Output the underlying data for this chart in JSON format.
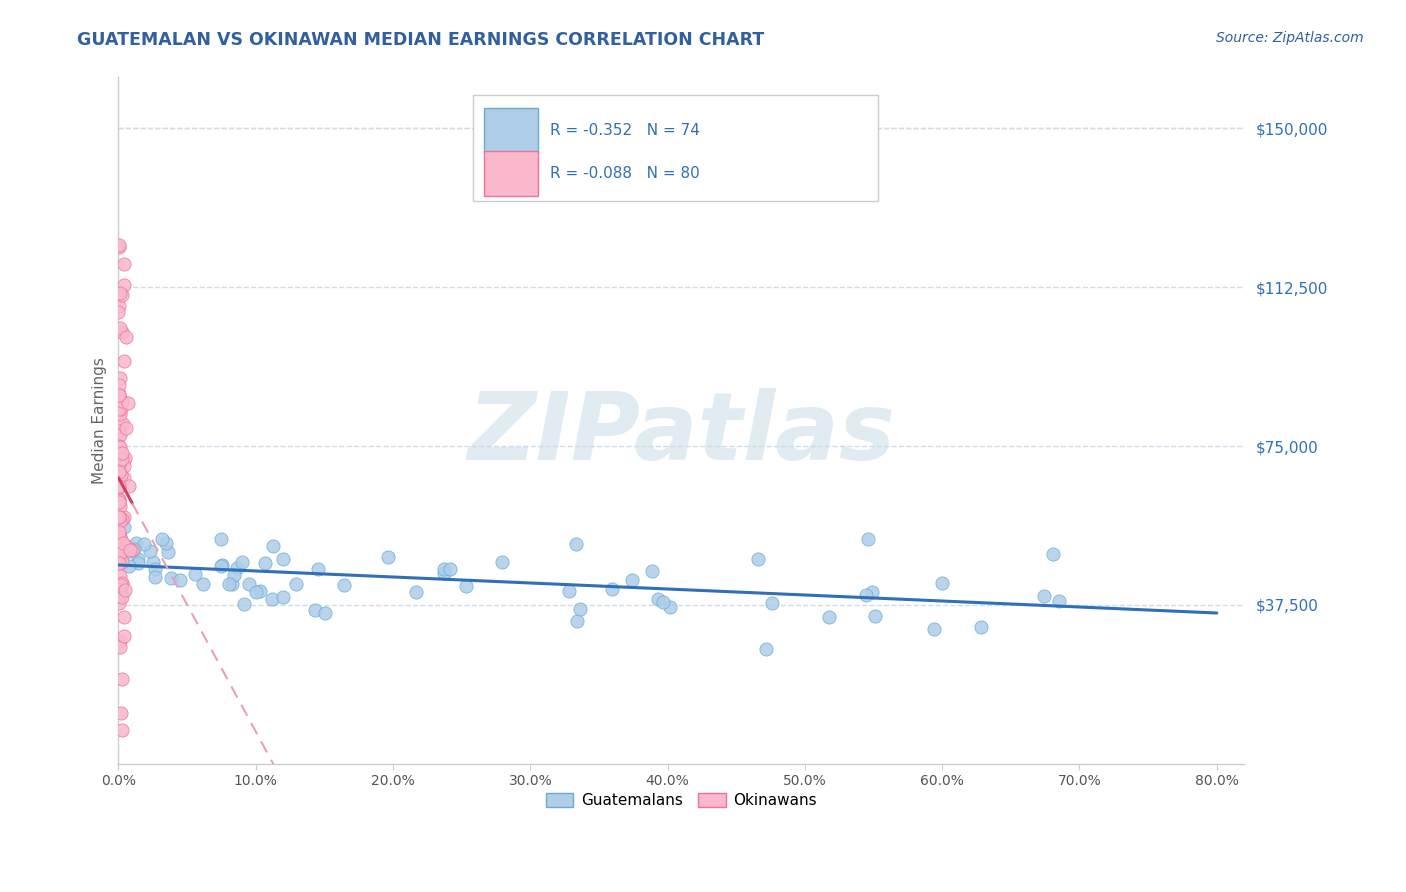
{
  "title": "GUATEMALAN VS OKINAWAN MEDIAN EARNINGS CORRELATION CHART",
  "source": "Source: ZipAtlas.com",
  "ylabel": "Median Earnings",
  "xlabel_ticks": [
    "0.0%",
    "10.0%",
    "20.0%",
    "30.0%",
    "40.0%",
    "50.0%",
    "60.0%",
    "70.0%",
    "80.0%"
  ],
  "xlabel_tick_vals": [
    0.0,
    0.1,
    0.2,
    0.3,
    0.4,
    0.5,
    0.6,
    0.7,
    0.8
  ],
  "ytick_labels": [
    "$37,500",
    "$75,000",
    "$112,500",
    "$150,000"
  ],
  "ytick_vals": [
    37500,
    75000,
    112500,
    150000
  ],
  "xlim": [
    0.0,
    0.82
  ],
  "ylim": [
    0,
    162000
  ],
  "blue_R": -0.352,
  "blue_N": 74,
  "pink_R": -0.088,
  "pink_N": 80,
  "blue_scatter_color": "#aecde8",
  "pink_scatter_color": "#f9b8cc",
  "blue_edge_color": "#6aacd4",
  "pink_edge_color": "#f07098",
  "blue_line_color": "#3070b8",
  "pink_line_color": "#d04060",
  "pink_dash_color": "#e8a0b8",
  "grid_color": "#d0dce8",
  "background_color": "#ffffff",
  "watermark_text": "ZIPatlas",
  "watermark_color": "#c8dce8",
  "legend_label_blue": "Guatemalans",
  "legend_label_pink": "Okinawans",
  "title_color": "#3060a0",
  "source_color": "#3060a0",
  "tick_color": "#3070b8",
  "axis_color": "#cccccc"
}
